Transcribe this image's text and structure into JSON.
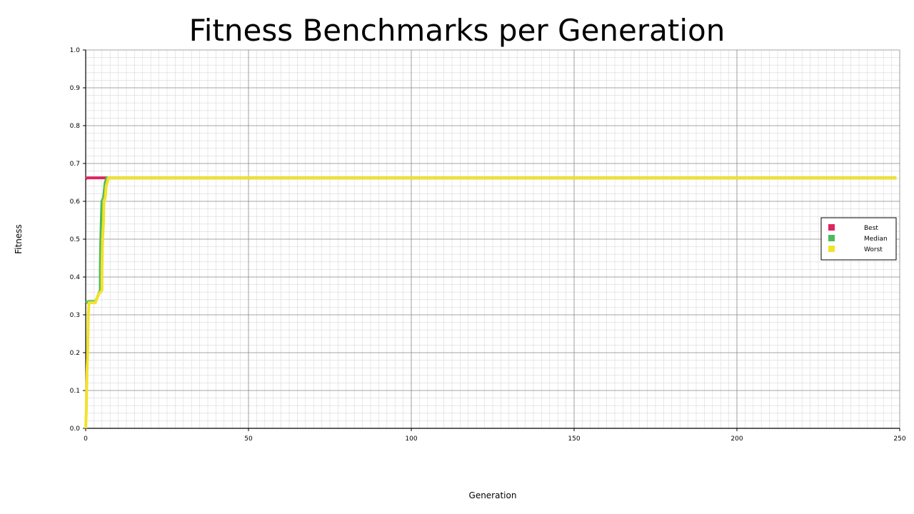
{
  "chart_data": {
    "type": "line",
    "title": "Fitness Benchmarks per Generation",
    "xlabel": "Generation",
    "ylabel": "Fitness",
    "xlim": [
      0,
      250
    ],
    "ylim": [
      0.0,
      1.0
    ],
    "x_ticks": [
      0,
      50,
      100,
      150,
      200,
      250
    ],
    "x_tick_labels": [
      "0",
      "50",
      "100",
      "150",
      "200",
      "250"
    ],
    "y_ticks": [
      0.0,
      0.1,
      0.2,
      0.3,
      0.4,
      0.5,
      0.6,
      0.7,
      0.8,
      0.9,
      1.0
    ],
    "y_tick_labels": [
      "0.0",
      "0.1",
      "0.2",
      "0.3",
      "0.4",
      "0.5",
      "0.6",
      "0.7",
      "0.8",
      "0.9",
      "1.0"
    ],
    "grid": true,
    "minor_grid": true,
    "legend_position": "right",
    "series": [
      {
        "name": "Best",
        "color": "#e0245e",
        "points": [
          [
            0,
            0.66
          ],
          [
            0.5,
            0.662
          ],
          [
            1,
            0.662
          ],
          [
            7,
            0.662
          ],
          [
            249,
            0.662
          ]
        ]
      },
      {
        "name": "Median",
        "color": "#4cbb5a",
        "points": [
          [
            0,
            0.332
          ],
          [
            1,
            0.335
          ],
          [
            2,
            0.335
          ],
          [
            3,
            0.335
          ],
          [
            3.5,
            0.345
          ],
          [
            4,
            0.355
          ],
          [
            4.5,
            0.365
          ],
          [
            4.5,
            0.42
          ],
          [
            4.6,
            0.48
          ],
          [
            4.8,
            0.55
          ],
          [
            5,
            0.6
          ],
          [
            5.5,
            0.61
          ],
          [
            6,
            0.65
          ],
          [
            6.5,
            0.662
          ],
          [
            7,
            0.662
          ],
          [
            249,
            0.662
          ]
        ]
      },
      {
        "name": "Worst",
        "color": "#f2e22a",
        "points": [
          [
            0,
            0.0
          ],
          [
            0.2,
            0.05
          ],
          [
            0.4,
            0.15
          ],
          [
            0.6,
            0.2
          ],
          [
            0.8,
            0.3
          ],
          [
            1,
            0.332
          ],
          [
            2,
            0.332
          ],
          [
            3,
            0.332
          ],
          [
            3.5,
            0.345
          ],
          [
            4,
            0.355
          ],
          [
            5,
            0.365
          ],
          [
            5,
            0.42
          ],
          [
            5.2,
            0.5
          ],
          [
            5.5,
            0.55
          ],
          [
            5.6,
            0.6
          ],
          [
            6,
            0.61
          ],
          [
            6.3,
            0.64
          ],
          [
            7,
            0.662
          ],
          [
            249,
            0.662
          ]
        ]
      }
    ]
  }
}
